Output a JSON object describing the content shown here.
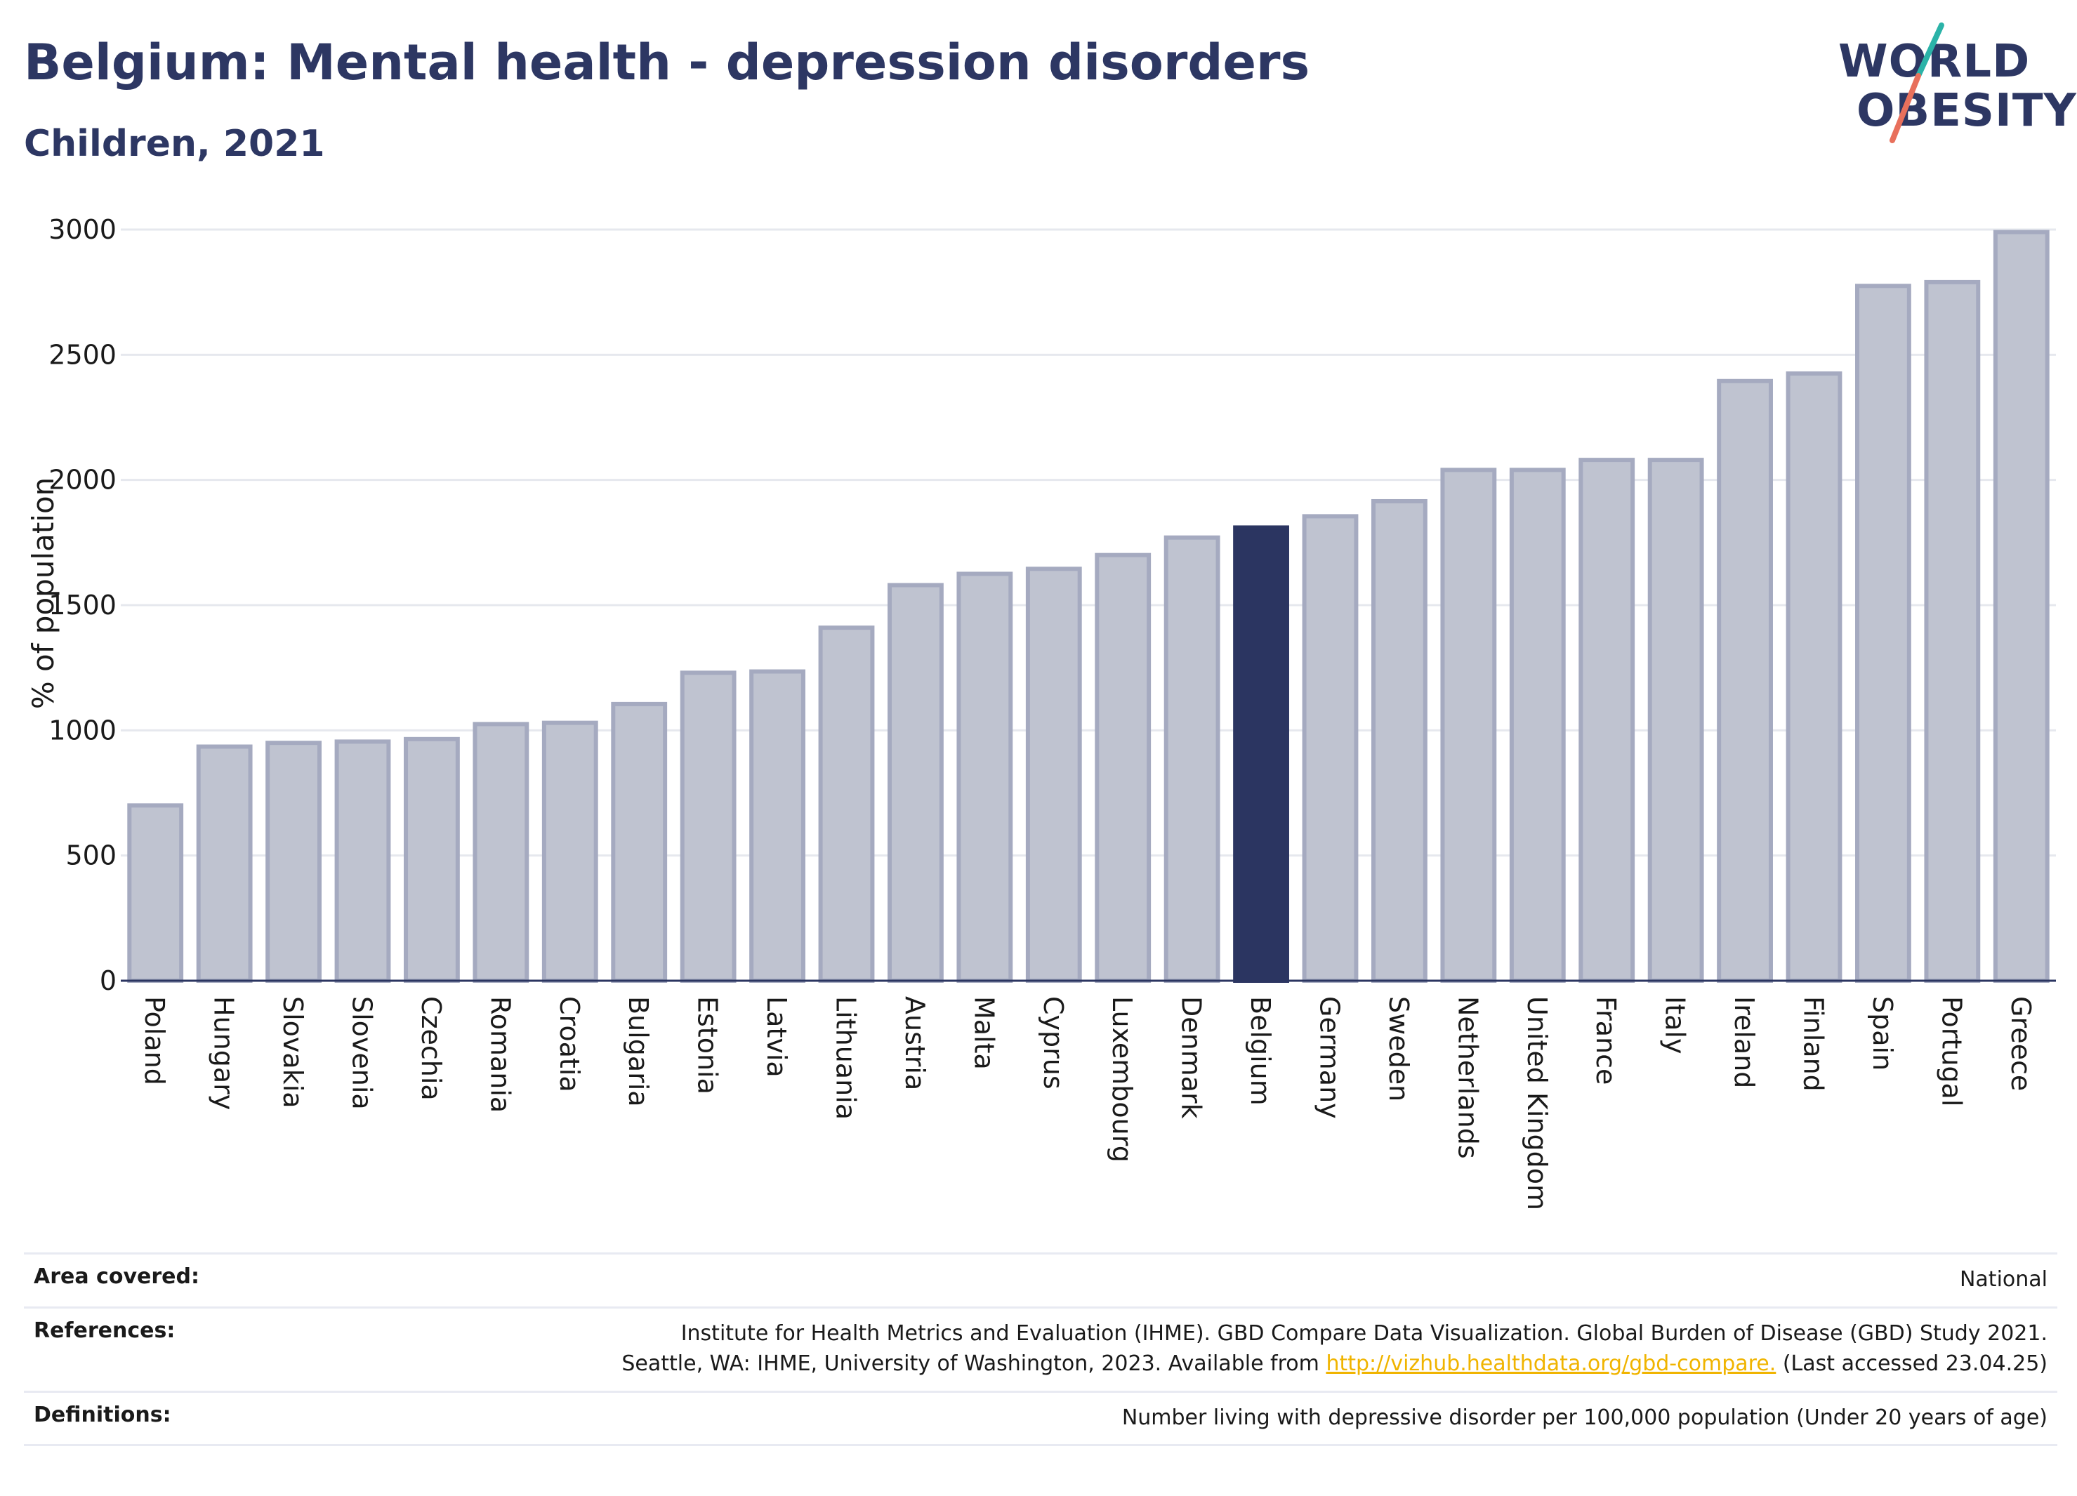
{
  "title": "Belgium: Mental health - depression disorders",
  "subtitle": "Children, 2021",
  "logo": {
    "line1": "WORLD",
    "line2": "OBESITY"
  },
  "colors": {
    "highlight": "#2b3561",
    "bar_fill": "#bfc3d0",
    "bar_stroke": "#a5aac0",
    "grid": "#e6e8ee",
    "logo_teal": "#2bb3a8",
    "logo_coral": "#e8705c"
  },
  "chart_data": {
    "type": "bar",
    "ylabel": "% of population",
    "ylim": [
      0,
      3000
    ],
    "yticks": [
      0,
      500,
      1000,
      1500,
      2000,
      2500,
      3000
    ],
    "grid": true,
    "highlight": "Belgium",
    "categories": [
      "Poland",
      "Hungary",
      "Slovakia",
      "Slovenia",
      "Czechia",
      "Romania",
      "Croatia",
      "Bulgaria",
      "Estonia",
      "Latvia",
      "Lithuania",
      "Austria",
      "Malta",
      "Cyprus",
      "Luxembourg",
      "Denmark",
      "Belgium",
      "Germany",
      "Sweden",
      "Netherlands",
      "United Kingdom",
      "France",
      "Italy",
      "Ireland",
      "Finland",
      "Spain",
      "Portugal",
      "Greece"
    ],
    "values": [
      700,
      935,
      950,
      955,
      965,
      1025,
      1030,
      1105,
      1230,
      1235,
      1410,
      1580,
      1625,
      1645,
      1700,
      1770,
      1810,
      1855,
      1915,
      2040,
      2040,
      2080,
      2080,
      2395,
      2425,
      2775,
      2790,
      2990
    ]
  },
  "footer": {
    "area_label": "Area covered:",
    "area_value": "National",
    "references_label": "References:",
    "references_line1": "Institute for Health Metrics and Evaluation (IHME). GBD Compare Data Visualization. Global Burden of Disease (GBD) Study 2021.",
    "references_line2_pre": "Seattle, WA: IHME, University of Washington, 2023. Available from",
    "references_link": "http://vizhub.healthdata.org/gbd-compare.",
    "references_line2_post": "(Last accessed 23.04.25)",
    "definitions_label": "Definitions:",
    "definitions_value": "Number living with depressive disorder per 100,000 population (Under 20 years of age)"
  }
}
